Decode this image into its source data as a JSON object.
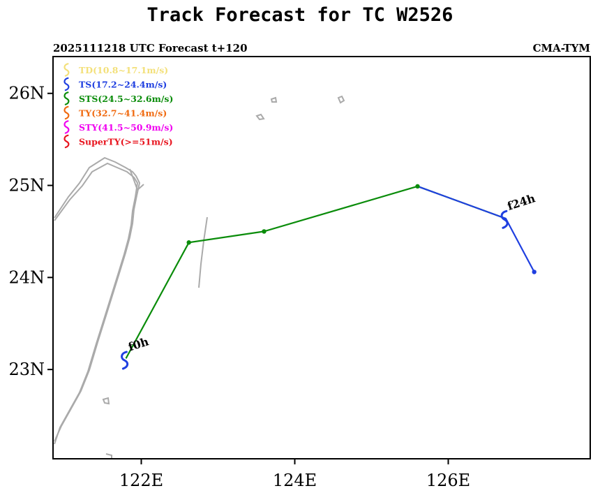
{
  "chart_data": {
    "type": "line",
    "title": "Track Forecast for TC W2526",
    "subtitle_left": "2025111218 UTC Forecast t+120",
    "subtitle_right": "CMA-TYM",
    "xlim": [
      120.85,
      127.85
    ],
    "ylim": [
      22.03,
      26.4
    ],
    "x_ticks": [
      {
        "value": 122,
        "label": "122E"
      },
      {
        "value": 124,
        "label": "124E"
      },
      {
        "value": 126,
        "label": "126E"
      }
    ],
    "y_ticks": [
      {
        "value": 26,
        "label": "26N"
      },
      {
        "value": 25,
        "label": "25N"
      },
      {
        "value": 24,
        "label": "24N"
      },
      {
        "value": 23,
        "label": "23N"
      }
    ],
    "legend": [
      {
        "label": "TD(10.8~17.1m/s)",
        "color": "#f3e07a"
      },
      {
        "label": "TS(17.2~24.4m/s)",
        "color": "#1f3fe0"
      },
      {
        "label": "STS(24.5~32.6m/s)",
        "color": "#0a8c0a"
      },
      {
        "label": "TY(32.7~41.4m/s)",
        "color": "#f06a10"
      },
      {
        "label": "STY(41.5~50.9m/s)",
        "color": "#f000f0"
      },
      {
        "label": "SuperTY(>=51m/s)",
        "color": "#e8141e"
      }
    ],
    "series": [
      {
        "category": "STS",
        "color": "#0a8c0a",
        "points": [
          [
            121.8,
            23.12
          ],
          [
            122.62,
            24.38
          ],
          [
            123.6,
            24.5
          ],
          [
            125.6,
            24.99
          ],
          [
            126.75,
            24.64
          ]
        ]
      },
      {
        "category": "TS",
        "color": "#1f3fe0",
        "points": [
          [
            125.6,
            24.99
          ],
          [
            126.75,
            24.64
          ],
          [
            127.12,
            24.06
          ]
        ]
      }
    ],
    "points": [
      {
        "lon": 122.62,
        "lat": 24.38,
        "color": "#0a8c0a"
      },
      {
        "lon": 123.6,
        "lat": 24.5,
        "color": "#0a8c0a"
      },
      {
        "lon": 125.6,
        "lat": 24.99,
        "color": "#0a8c0a"
      },
      {
        "lon": 127.12,
        "lat": 24.06,
        "color": "#1f3fe0"
      }
    ],
    "symbols": [
      {
        "lon": 121.79,
        "lat": 23.1,
        "color": "#1f3fe0"
      },
      {
        "lon": 126.74,
        "lat": 24.63,
        "color": "#1f3fe0"
      }
    ],
    "annotations": [
      {
        "text": "f0h",
        "lon": 121.85,
        "lat": 23.2
      },
      {
        "text": "f24h",
        "lon": 126.79,
        "lat": 24.73
      }
    ],
    "coastline_color": "#aaaaaa"
  }
}
